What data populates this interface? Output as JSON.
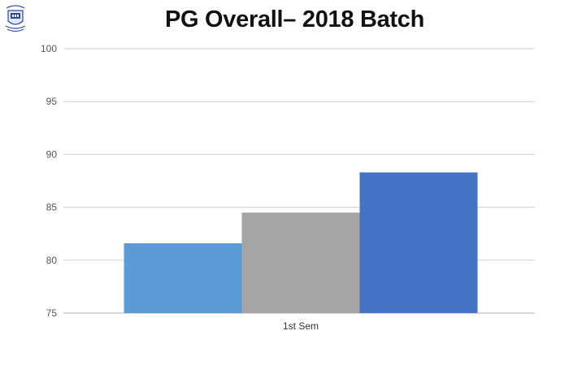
{
  "chart_data": {
    "type": "bar",
    "title": "PG Overall– 2018 Batch",
    "xlabel": "",
    "ylabel": "",
    "categories": [
      "1st Sem"
    ],
    "series": [
      {
        "values": [
          81.6
        ],
        "color": "#5b9bd5"
      },
      {
        "values": [
          84.5
        ],
        "color": "#a5a5a5"
      },
      {
        "values": [
          88.3
        ],
        "color": "#4472c4"
      }
    ],
    "ylim": [
      75,
      100
    ],
    "yticks": [
      75,
      80,
      85,
      90,
      95,
      100
    ],
    "grid": true,
    "legend": "none"
  },
  "logo": {
    "icon": "institution-crest-icon",
    "color": "#2a4aa0"
  }
}
